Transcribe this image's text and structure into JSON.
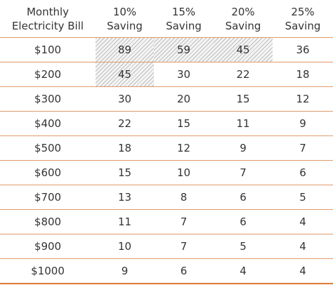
{
  "table": {
    "headers": [
      [
        "Monthly",
        "Electricity Bill"
      ],
      [
        "10%",
        "Saving"
      ],
      [
        "15%",
        "Saving"
      ],
      [
        "20%",
        "Saving"
      ],
      [
        "25%",
        "Saving"
      ]
    ],
    "rows": [
      {
        "bill": "$100",
        "values": [
          "89",
          "59",
          "45",
          "36"
        ],
        "hatched": [
          true,
          true,
          true,
          false
        ]
      },
      {
        "bill": "$200",
        "values": [
          "45",
          "30",
          "22",
          "18"
        ],
        "hatched": [
          true,
          false,
          false,
          false
        ]
      },
      {
        "bill": "$300",
        "values": [
          "30",
          "20",
          "15",
          "12"
        ],
        "hatched": [
          false,
          false,
          false,
          false
        ]
      },
      {
        "bill": "$400",
        "values": [
          "22",
          "15",
          "11",
          "9"
        ],
        "hatched": [
          false,
          false,
          false,
          false
        ]
      },
      {
        "bill": "$500",
        "values": [
          "18",
          "12",
          "9",
          "7"
        ],
        "hatched": [
          false,
          false,
          false,
          false
        ]
      },
      {
        "bill": "$600",
        "values": [
          "15",
          "10",
          "7",
          "6"
        ],
        "hatched": [
          false,
          false,
          false,
          false
        ]
      },
      {
        "bill": "$700",
        "values": [
          "13",
          "8",
          "6",
          "5"
        ],
        "hatched": [
          false,
          false,
          false,
          false
        ]
      },
      {
        "bill": "$800",
        "values": [
          "11",
          "7",
          "6",
          "4"
        ],
        "hatched": [
          false,
          false,
          false,
          false
        ]
      },
      {
        "bill": "$900",
        "values": [
          "10",
          "7",
          "5",
          "4"
        ],
        "hatched": [
          false,
          false,
          false,
          false
        ]
      },
      {
        "bill": "$1000",
        "values": [
          "9",
          "6",
          "4",
          "4"
        ],
        "hatched": [
          false,
          false,
          false,
          false
        ]
      }
    ]
  },
  "colors": {
    "rule": "#e09a6a",
    "rule_bottom": "#e07a38",
    "text": "#333333"
  }
}
